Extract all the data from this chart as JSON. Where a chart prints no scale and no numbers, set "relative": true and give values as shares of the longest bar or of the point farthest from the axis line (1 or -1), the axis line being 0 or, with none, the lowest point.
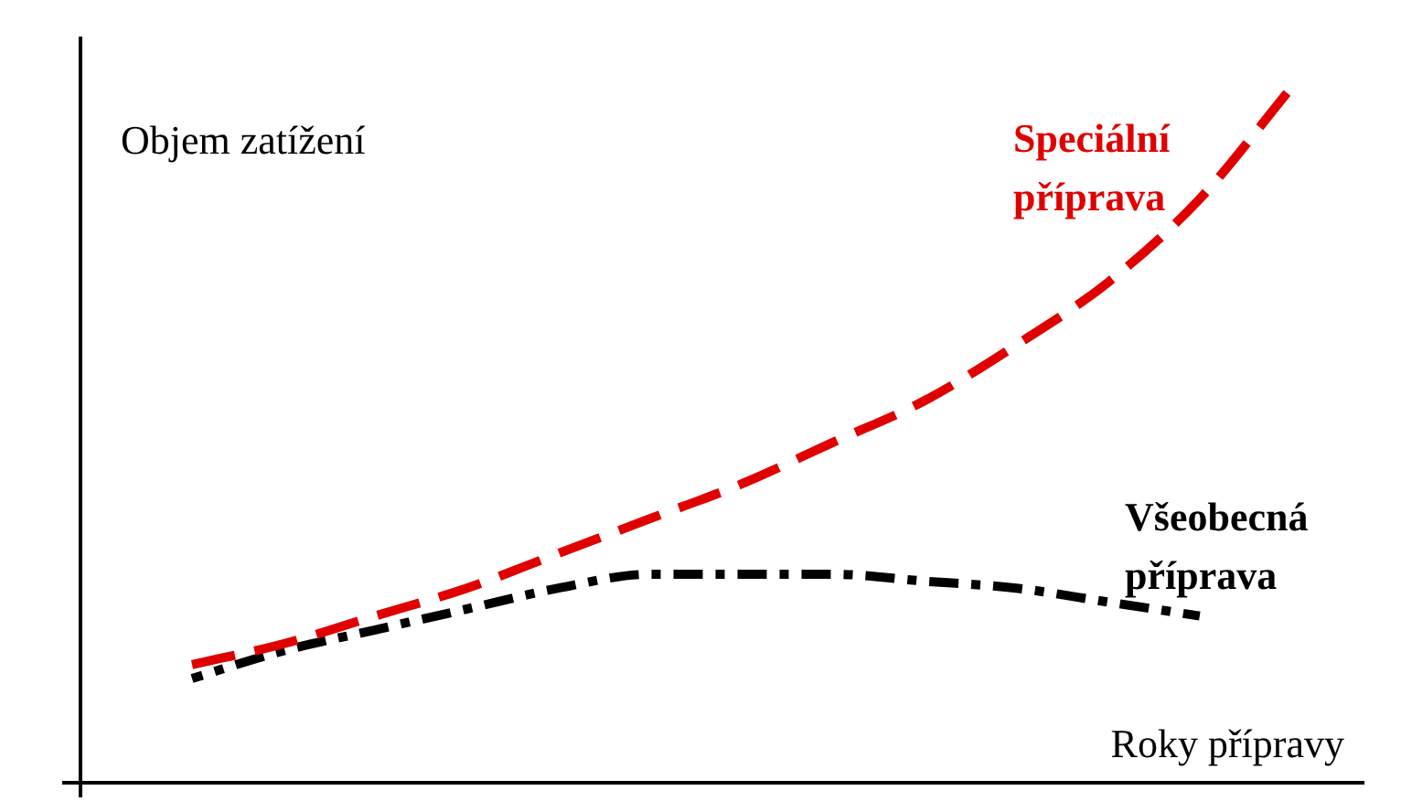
{
  "chart_data": {
    "type": "line",
    "relative": true,
    "xlabel": "Roky přípravy",
    "ylabel": "Objem zatížení",
    "categories": [
      null,
      null,
      null,
      null,
      null,
      null,
      null,
      null,
      null,
      null,
      null,
      null,
      null
    ],
    "series": [
      {
        "name": "Speciální příprava",
        "color": "#e00000",
        "line_style": "dashed",
        "values": [
          0.17,
          0.2,
          0.24,
          0.28,
          0.33,
          0.38,
          0.43,
          0.49,
          0.55,
          0.63,
          0.72,
          0.84,
          1
        ]
      },
      {
        "name": "Všeobecná příprava",
        "color": "#000000",
        "line_style": "dashdot",
        "values": [
          0.15,
          0.19,
          0.22,
          0.25,
          0.28,
          0.3,
          0.3,
          0.3,
          0.29,
          0.28,
          0.26,
          0.24,
          null
        ]
      }
    ],
    "marker": "none",
    "legend": false
  }
}
